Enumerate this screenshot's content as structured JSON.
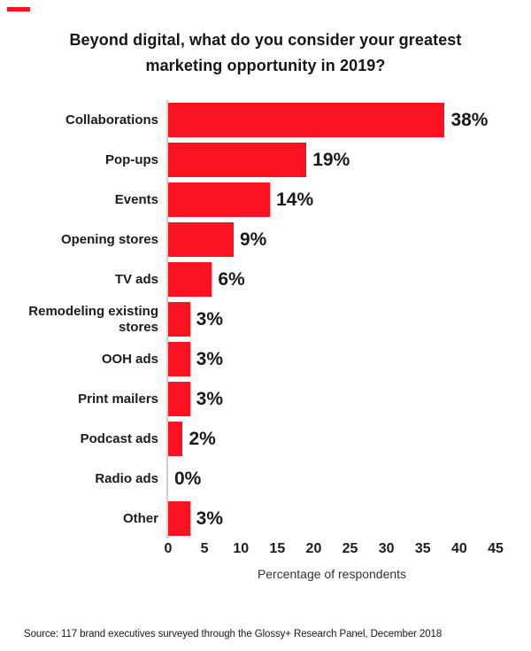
{
  "chart_data": {
    "type": "bar",
    "orientation": "horizontal",
    "title": "Beyond digital, what do you consider your greatest marketing opportunity in 2019?",
    "categories": [
      "Collaborations",
      "Pop-ups",
      "Events",
      "Opening stores",
      "TV ads",
      "Remodeling existing stores",
      "OOH ads",
      "Print mailers",
      "Podcast ads",
      "Radio ads",
      "Other"
    ],
    "values": [
      38,
      19,
      14,
      9,
      6,
      3,
      3,
      3,
      2,
      0,
      3
    ],
    "value_labels": [
      "38%",
      "19%",
      "14%",
      "9%",
      "6%",
      "3%",
      "3%",
      "3%",
      "2%",
      "0%",
      "3%"
    ],
    "xlabel": "Percentage of respondents",
    "xlim": [
      0,
      45
    ],
    "xticks": [
      0,
      5,
      10,
      15,
      20,
      25,
      30,
      35,
      40,
      45
    ],
    "bar_color": "#f9121f",
    "grid": false,
    "legend": false
  },
  "source": "Source: 117 brand executives surveyed through the Glossy+ Research Panel, December 2018"
}
